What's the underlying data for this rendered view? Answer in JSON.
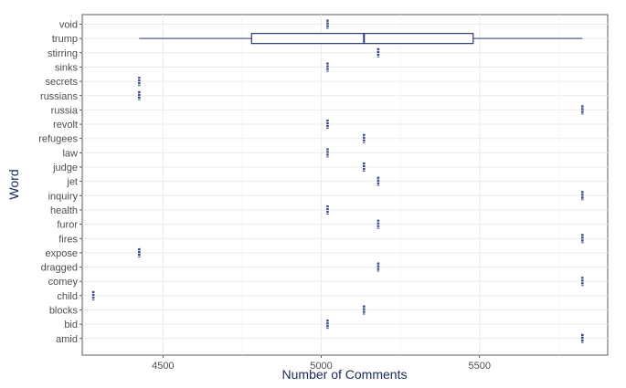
{
  "chart_data": {
    "type": "boxplot",
    "xlabel": "Number of Comments",
    "ylabel": "Word",
    "xlim": [
      4245,
      5905
    ],
    "xticks": [
      4500,
      5000,
      5500
    ],
    "grid": true,
    "categories": [
      "void",
      "trump",
      "stirring",
      "sinks",
      "secrets",
      "russians",
      "russia",
      "revolt",
      "refugees",
      "law",
      "judge",
      "jet",
      "inquiry",
      "health",
      "furor",
      "fires",
      "expose",
      "dragged",
      "comey",
      "child",
      "blocks",
      "bid",
      "amid"
    ],
    "values": [
      5020,
      5135,
      5180,
      5020,
      4425,
      4425,
      5825,
      5020,
      5135,
      5020,
      5135,
      5180,
      5825,
      5020,
      5180,
      5825,
      4425,
      5180,
      5825,
      4280,
      5135,
      5020,
      5825
    ],
    "boxes": [
      {
        "category": "trump",
        "min": 4425,
        "q1": 4780,
        "median": 5135,
        "q3": 5480,
        "max": 5825
      }
    ],
    "colors": {
      "box": "#2b3a7a",
      "mark": "#3a4a8a",
      "grid": "#ebebeb",
      "axis_title": "#1a2a5a"
    }
  }
}
